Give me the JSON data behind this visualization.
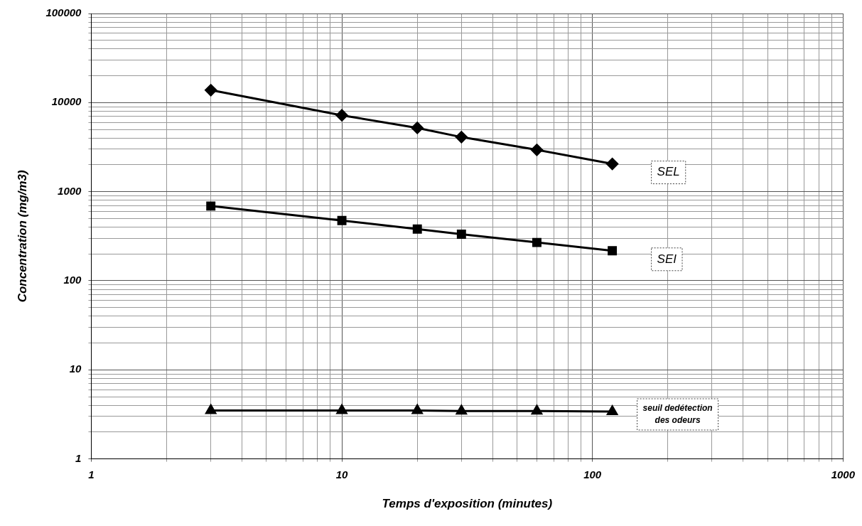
{
  "chart_data": {
    "type": "line",
    "xlabel": "Temps d'exposition (minutes)",
    "ylabel": "Concentration (mg/m3)",
    "x": [
      3,
      10,
      20,
      30,
      60,
      120
    ],
    "series": [
      {
        "name": "SEL",
        "color": "#000000",
        "marker": "diamond",
        "values": [
          13800,
          7200,
          5200,
          4100,
          2950,
          2050
        ]
      },
      {
        "name": "SEI",
        "color": "#000000",
        "marker": "square",
        "values": [
          690,
          474,
          380,
          333,
          269,
          217
        ]
      },
      {
        "name": "seuil dedétection\ndes odeurs",
        "color": "#000000",
        "marker": "triangle",
        "values": [
          3.5,
          3.5,
          3.5,
          3.45,
          3.45,
          3.4
        ]
      }
    ],
    "log": "xy",
    "xlim": [
      1,
      1000
    ],
    "ylim": [
      1,
      100000
    ],
    "xticks": [
      1,
      {
        "value": 2,
        "label": null
      },
      {
        "value": 3,
        "label": null
      },
      {
        "value": 4,
        "label": null
      },
      {
        "value": 5,
        "label": null
      },
      {
        "value": 6,
        "label": null
      },
      {
        "value": 7,
        "label": null
      },
      {
        "value": 8,
        "label": null
      },
      {
        "value": 9,
        "label": null
      },
      10,
      {
        "value": 20,
        "label": null
      },
      {
        "value": 30,
        "label": null
      },
      {
        "value": 40,
        "label": null
      },
      {
        "value": 50,
        "label": null
      },
      {
        "value": 60,
        "label": null
      },
      {
        "value": 70,
        "label": null
      },
      {
        "value": 80,
        "label": null
      },
      {
        "value": 90,
        "label": null
      },
      100,
      {
        "value": 200,
        "label": null
      },
      {
        "value": 300,
        "label": null
      },
      {
        "value": 400,
        "label": null
      },
      {
        "value": 500,
        "label": null
      },
      {
        "value": 600,
        "label": null
      },
      {
        "value": 700,
        "label": null
      },
      {
        "value": 800,
        "label": null
      },
      {
        "value": 900,
        "label": null
      },
      1000
    ],
    "yticks": [
      1,
      {
        "value": 2,
        "label": null
      },
      {
        "value": 3,
        "label": null
      },
      {
        "value": 4,
        "label": null
      },
      {
        "value": 5,
        "label": null
      },
      {
        "value": 6,
        "label": null
      },
      {
        "value": 7,
        "label": null
      },
      {
        "value": 8,
        "label": null
      },
      {
        "value": 9,
        "label": null
      },
      10,
      {
        "value": 20,
        "label": null
      },
      {
        "value": 30,
        "label": null
      },
      {
        "value": 40,
        "label": null
      },
      {
        "value": 50,
        "label": null
      },
      {
        "value": 60,
        "label": null
      },
      {
        "value": 70,
        "label": null
      },
      {
        "value": 80,
        "label": null
      },
      {
        "value": 90,
        "label": null
      },
      100,
      {
        "value": 200,
        "label": null
      },
      {
        "value": 300,
        "label": null
      },
      {
        "value": 400,
        "label": null
      },
      {
        "value": 500,
        "label": null
      },
      {
        "value": 600,
        "label": null
      },
      {
        "value": 700,
        "label": null
      },
      {
        "value": 800,
        "label": null
      },
      {
        "value": 900,
        "label": null
      },
      1000,
      {
        "value": 2000,
        "label": null
      },
      {
        "value": 3000,
        "label": null
      },
      {
        "value": 4000,
        "label": null
      },
      {
        "value": 5000,
        "label": null
      },
      {
        "value": 6000,
        "label": null
      },
      {
        "value": 7000,
        "label": null
      },
      {
        "value": 8000,
        "label": null
      },
      {
        "value": 9000,
        "label": null
      },
      10000,
      {
        "value": 20000,
        "label": null
      },
      {
        "value": 30000,
        "label": null
      },
      {
        "value": 40000,
        "label": null
      },
      {
        "value": 50000,
        "label": null
      },
      {
        "value": 60000,
        "label": null
      },
      {
        "value": 70000,
        "label": null
      },
      {
        "value": 80000,
        "label": null
      },
      {
        "value": 90000,
        "label": null
      },
      100000
    ],
    "grid": true,
    "legend": false,
    "line_style": "solid"
  }
}
